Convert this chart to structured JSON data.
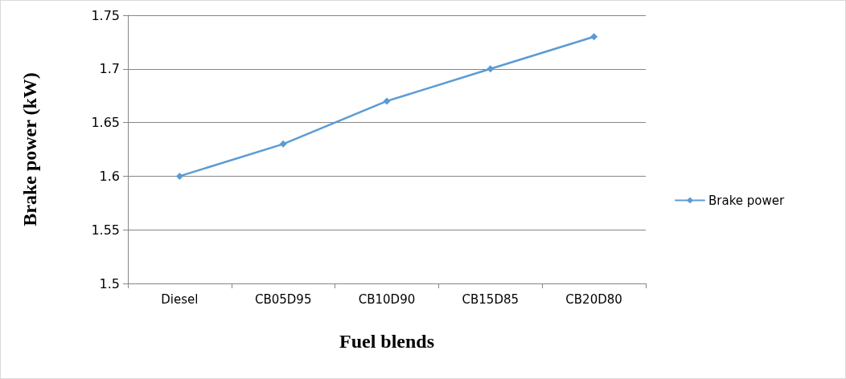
{
  "chart_data": {
    "type": "line",
    "xlabel": "Fuel blends",
    "ylabel": "Brake power (kW)",
    "categories": [
      "Diesel",
      "CB05D95",
      "CB10D90",
      "CB15D85",
      "CB20D80"
    ],
    "series": [
      {
        "name": "Brake power",
        "color": "#5b9bd5",
        "values": [
          1.6,
          1.63,
          1.67,
          1.7,
          1.73
        ]
      }
    ],
    "ylim": [
      1.5,
      1.75
    ],
    "yticks": [
      1.5,
      1.55,
      1.6,
      1.65,
      1.7,
      1.75
    ],
    "grid": "y",
    "legend": "right",
    "marker": "diamond",
    "line_style": "solid"
  }
}
